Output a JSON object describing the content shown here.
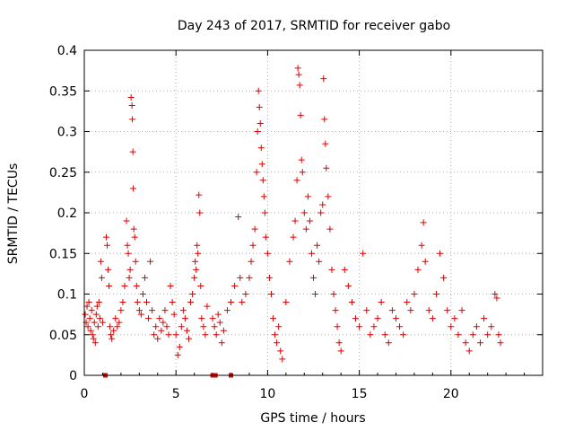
{
  "chart_data": {
    "type": "scatter",
    "title": "Day 243 of 2017, SRMTID for receiver gabo",
    "xlabel": "GPS time / hours",
    "ylabel": "SRMTID / TECUs",
    "xlim": [
      0,
      25
    ],
    "ylim": [
      0,
      0.4
    ],
    "x_ticks": [
      0,
      5,
      10,
      15,
      20
    ],
    "x_tick_labels": [
      "0",
      "5",
      "10",
      "15",
      "20"
    ],
    "y_ticks": [
      0,
      0.05,
      0.1,
      0.15,
      0.2,
      0.25,
      0.3,
      0.35,
      0.4
    ],
    "y_tick_labels": [
      "0",
      "0.05",
      "0.1",
      "0.15",
      "0.2",
      "0.25",
      "0.3",
      "0.35",
      "0.4"
    ],
    "grid": true,
    "marker": "+",
    "color": "#dd0000",
    "series": [
      {
        "name": "SRMTID",
        "points": [
          [
            0.05,
            0.075
          ],
          [
            0.1,
            0.065
          ],
          [
            0.15,
            0.085
          ],
          [
            0.2,
            0.06
          ],
          [
            0.25,
            0.09
          ],
          [
            0.3,
            0.07
          ],
          [
            0.35,
            0.055
          ],
          [
            0.4,
            0.08
          ],
          [
            0.45,
            0.05
          ],
          [
            0.5,
            0.045
          ],
          [
            0.55,
            0.065
          ],
          [
            0.6,
            0.04
          ],
          [
            0.65,
            0.075
          ],
          [
            0.7,
            0.085
          ],
          [
            0.75,
            0.06
          ],
          [
            0.8,
            0.09
          ],
          [
            0.85,
            0.07
          ],
          [
            0.9,
            0.14
          ],
          [
            0.95,
            0.12
          ],
          [
            1.0,
            0.065
          ],
          [
            1.2,
            0.17
          ],
          [
            1.25,
            0.16
          ],
          [
            1.3,
            0.13
          ],
          [
            1.35,
            0.11
          ],
          [
            1.4,
            0.06
          ],
          [
            1.45,
            0.05
          ],
          [
            1.5,
            0.045
          ],
          [
            1.6,
            0.055
          ],
          [
            1.7,
            0.07
          ],
          [
            1.8,
            0.06
          ],
          [
            1.9,
            0.065
          ],
          [
            2.0,
            0.08
          ],
          [
            2.1,
            0.09
          ],
          [
            2.2,
            0.11
          ],
          [
            2.3,
            0.19
          ],
          [
            2.35,
            0.16
          ],
          [
            2.4,
            0.15
          ],
          [
            2.45,
            0.12
          ],
          [
            2.5,
            0.13
          ],
          [
            2.55,
            0.342
          ],
          [
            2.6,
            0.332
          ],
          [
            2.62,
            0.315
          ],
          [
            2.65,
            0.275
          ],
          [
            2.67,
            0.23
          ],
          [
            2.7,
            0.18
          ],
          [
            2.75,
            0.17
          ],
          [
            2.8,
            0.14
          ],
          [
            2.85,
            0.11
          ],
          [
            2.9,
            0.09
          ],
          [
            3.0,
            0.08
          ],
          [
            3.1,
            0.075
          ],
          [
            3.2,
            0.1
          ],
          [
            3.3,
            0.12
          ],
          [
            3.4,
            0.09
          ],
          [
            3.5,
            0.07
          ],
          [
            3.6,
            0.14
          ],
          [
            3.7,
            0.08
          ],
          [
            3.8,
            0.05
          ],
          [
            3.9,
            0.06
          ],
          [
            4.0,
            0.045
          ],
          [
            4.1,
            0.07
          ],
          [
            4.2,
            0.055
          ],
          [
            4.3,
            0.065
          ],
          [
            4.4,
            0.08
          ],
          [
            4.5,
            0.06
          ],
          [
            4.6,
            0.05
          ],
          [
            4.7,
            0.11
          ],
          [
            4.8,
            0.09
          ],
          [
            4.9,
            0.075
          ],
          [
            5.0,
            0.05
          ],
          [
            5.1,
            0.025
          ],
          [
            5.2,
            0.035
          ],
          [
            5.3,
            0.06
          ],
          [
            5.4,
            0.08
          ],
          [
            5.5,
            0.07
          ],
          [
            5.6,
            0.055
          ],
          [
            5.7,
            0.045
          ],
          [
            5.8,
            0.09
          ],
          [
            5.9,
            0.1
          ],
          [
            6.0,
            0.12
          ],
          [
            6.05,
            0.14
          ],
          [
            6.1,
            0.13
          ],
          [
            6.15,
            0.16
          ],
          [
            6.2,
            0.15
          ],
          [
            6.25,
            0.222
          ],
          [
            6.3,
            0.2
          ],
          [
            6.35,
            0.11
          ],
          [
            6.4,
            0.07
          ],
          [
            6.5,
            0.06
          ],
          [
            6.6,
            0.05
          ],
          [
            6.7,
            0.085
          ],
          [
            7.0,
            0.07
          ],
          [
            7.1,
            0.06
          ],
          [
            7.2,
            0.05
          ],
          [
            7.3,
            0.075
          ],
          [
            7.4,
            0.065
          ],
          [
            7.5,
            0.04
          ],
          [
            7.6,
            0.055
          ],
          [
            7.8,
            0.08
          ],
          [
            8.0,
            0.09
          ],
          [
            8.2,
            0.11
          ],
          [
            8.4,
            0.195
          ],
          [
            8.5,
            0.12
          ],
          [
            8.6,
            0.09
          ],
          [
            8.8,
            0.1
          ],
          [
            9.0,
            0.12
          ],
          [
            9.1,
            0.14
          ],
          [
            9.2,
            0.16
          ],
          [
            9.3,
            0.18
          ],
          [
            9.4,
            0.25
          ],
          [
            9.45,
            0.3
          ],
          [
            9.5,
            0.35
          ],
          [
            9.55,
            0.33
          ],
          [
            9.6,
            0.31
          ],
          [
            9.65,
            0.28
          ],
          [
            9.7,
            0.26
          ],
          [
            9.75,
            0.24
          ],
          [
            9.8,
            0.22
          ],
          [
            9.85,
            0.2
          ],
          [
            9.9,
            0.17
          ],
          [
            10.0,
            0.15
          ],
          [
            10.1,
            0.12
          ],
          [
            10.2,
            0.1
          ],
          [
            10.3,
            0.07
          ],
          [
            10.4,
            0.05
          ],
          [
            10.5,
            0.04
          ],
          [
            10.6,
            0.06
          ],
          [
            10.7,
            0.03
          ],
          [
            10.8,
            0.02
          ],
          [
            11.0,
            0.09
          ],
          [
            11.2,
            0.14
          ],
          [
            11.4,
            0.17
          ],
          [
            11.5,
            0.19
          ],
          [
            11.6,
            0.24
          ],
          [
            11.65,
            0.378
          ],
          [
            11.7,
            0.37
          ],
          [
            11.75,
            0.357
          ],
          [
            11.8,
            0.32
          ],
          [
            11.85,
            0.265
          ],
          [
            11.9,
            0.25
          ],
          [
            12.0,
            0.2
          ],
          [
            12.1,
            0.18
          ],
          [
            12.2,
            0.22
          ],
          [
            12.3,
            0.19
          ],
          [
            12.4,
            0.15
          ],
          [
            12.5,
            0.12
          ],
          [
            12.6,
            0.1
          ],
          [
            12.7,
            0.16
          ],
          [
            12.8,
            0.14
          ],
          [
            12.9,
            0.2
          ],
          [
            13.0,
            0.21
          ],
          [
            13.05,
            0.365
          ],
          [
            13.1,
            0.315
          ],
          [
            13.15,
            0.285
          ],
          [
            13.2,
            0.255
          ],
          [
            13.3,
            0.22
          ],
          [
            13.4,
            0.18
          ],
          [
            13.5,
            0.13
          ],
          [
            13.6,
            0.1
          ],
          [
            13.7,
            0.08
          ],
          [
            13.8,
            0.06
          ],
          [
            13.9,
            0.04
          ],
          [
            14.0,
            0.03
          ],
          [
            14.2,
            0.13
          ],
          [
            14.4,
            0.11
          ],
          [
            14.6,
            0.09
          ],
          [
            14.8,
            0.07
          ],
          [
            15.0,
            0.06
          ],
          [
            15.2,
            0.15
          ],
          [
            15.4,
            0.08
          ],
          [
            15.6,
            0.05
          ],
          [
            15.8,
            0.06
          ],
          [
            16.0,
            0.07
          ],
          [
            16.2,
            0.09
          ],
          [
            16.4,
            0.05
          ],
          [
            16.6,
            0.04
          ],
          [
            16.8,
            0.08
          ],
          [
            17.0,
            0.07
          ],
          [
            17.2,
            0.06
          ],
          [
            17.4,
            0.05
          ],
          [
            17.6,
            0.09
          ],
          [
            17.8,
            0.08
          ],
          [
            18.0,
            0.1
          ],
          [
            18.2,
            0.13
          ],
          [
            18.4,
            0.16
          ],
          [
            18.5,
            0.188
          ],
          [
            18.6,
            0.14
          ],
          [
            18.8,
            0.08
          ],
          [
            19.0,
            0.07
          ],
          [
            19.2,
            0.1
          ],
          [
            19.4,
            0.15
          ],
          [
            19.6,
            0.12
          ],
          [
            19.8,
            0.08
          ],
          [
            20.0,
            0.06
          ],
          [
            20.2,
            0.07
          ],
          [
            20.4,
            0.05
          ],
          [
            20.6,
            0.08
          ],
          [
            20.8,
            0.04
          ],
          [
            21.0,
            0.03
          ],
          [
            21.2,
            0.05
          ],
          [
            21.4,
            0.06
          ],
          [
            21.6,
            0.04
          ],
          [
            21.8,
            0.07
          ],
          [
            22.0,
            0.05
          ],
          [
            22.2,
            0.06
          ],
          [
            22.4,
            0.1
          ],
          [
            22.5,
            0.095
          ],
          [
            22.6,
            0.05
          ],
          [
            22.7,
            0.04
          ]
        ]
      }
    ],
    "outliers_at_zero": [
      1.15,
      7.0,
      7.15,
      8.0
    ]
  }
}
